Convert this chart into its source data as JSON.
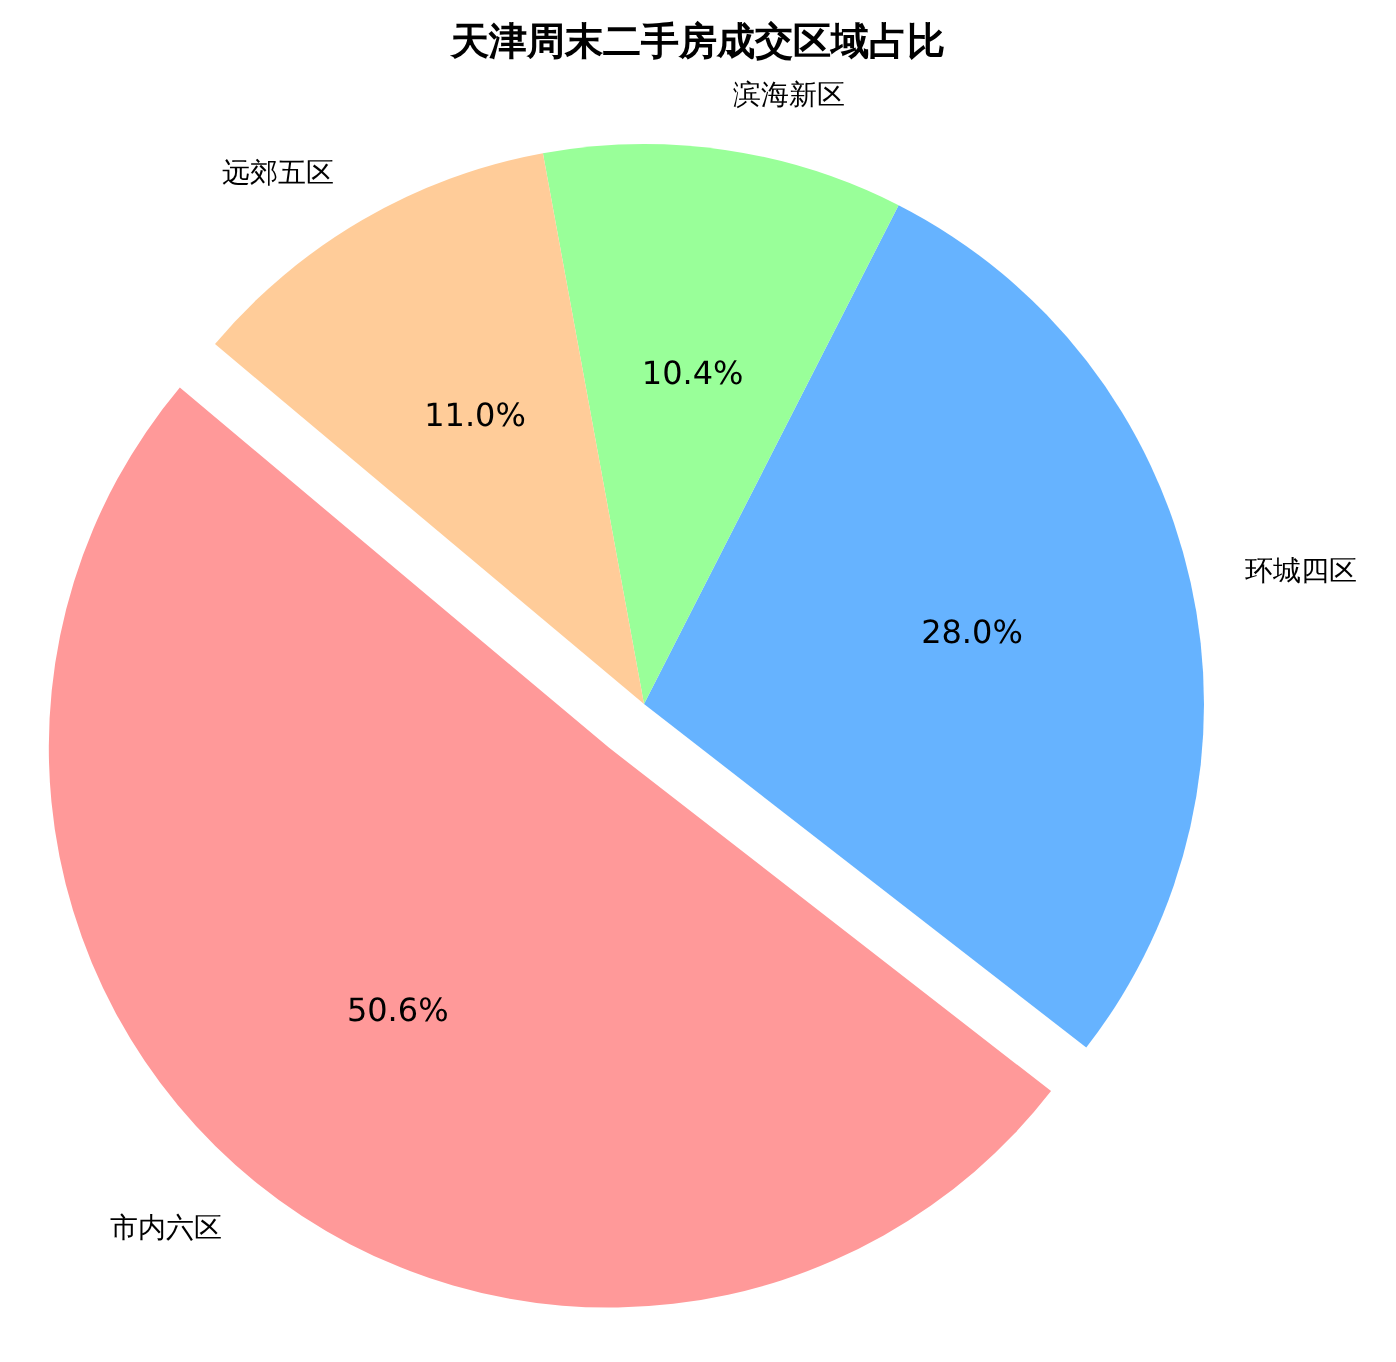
{
  "chart_data": {
    "type": "pie",
    "title": "天津周末二手房成交区域占比",
    "categories": [
      "市内六区",
      "环城四区",
      "滨海新区",
      "远郊五区"
    ],
    "values": [
      50.6,
      28.0,
      10.4,
      11.0
    ],
    "colors": [
      "#ff9999",
      "#66b3ff",
      "#99ff99",
      "#ffcc99"
    ],
    "value_labels": [
      "50.6%",
      "28.0%",
      "10.4%",
      "11.0%"
    ],
    "legend": false
  }
}
